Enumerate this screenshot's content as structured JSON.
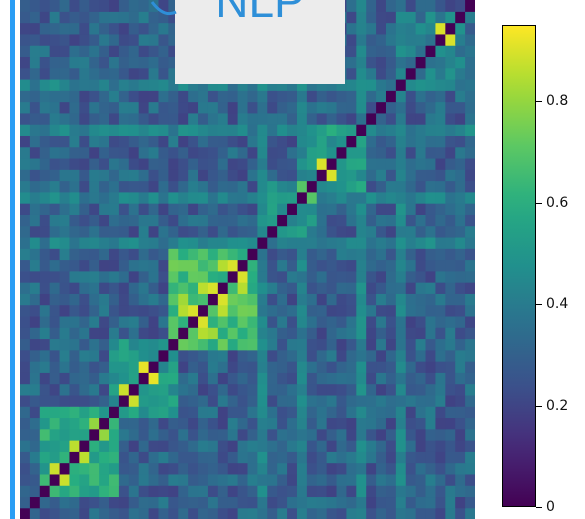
{
  "callout": {
    "label": "NLP",
    "color": "#2e8fd8"
  },
  "chart_data": {
    "type": "heatmap",
    "title": "",
    "xlabel": "",
    "ylabel": "",
    "n": 46,
    "colormap": "viridis",
    "colorbar": {
      "range": [
        0,
        0.95
      ],
      "tick_labels": [
        "0",
        "0.2",
        "0.4",
        "0.6",
        "0.8"
      ],
      "tick_values": [
        0,
        0.2,
        0.4,
        0.6,
        0.8
      ]
    },
    "diagonal_value": 0,
    "background_value": 0.3,
    "blocks": [
      {
        "rows": [
          2,
          9
        ],
        "value": 0.58
      },
      {
        "rows": [
          9,
          15
        ],
        "value": 0.5
      },
      {
        "rows": [
          15,
          23
        ],
        "value": 0.66
      },
      {
        "rows": [
          25,
          29
        ],
        "value": 0.48
      },
      {
        "rows": [
          29,
          34
        ],
        "value": 0.52
      },
      {
        "rows": [
          38,
          44
        ],
        "value": 0.4
      }
    ],
    "highlight_cells": [
      {
        "row": 1,
        "col": 1,
        "value": 0.95
      },
      {
        "row": 3,
        "col": 4,
        "value": 0.88
      },
      {
        "row": 5,
        "col": 6,
        "value": 0.86
      },
      {
        "row": 7,
        "col": 8,
        "value": 0.84
      },
      {
        "row": 8,
        "col": 7,
        "value": 0.8
      },
      {
        "row": 10,
        "col": 11,
        "value": 0.9
      },
      {
        "row": 11,
        "col": 10,
        "value": 0.88
      },
      {
        "row": 12,
        "col": 13,
        "value": 0.92
      },
      {
        "row": 17,
        "col": 18,
        "value": 0.9
      },
      {
        "row": 18,
        "col": 16,
        "value": 0.85
      },
      {
        "row": 19,
        "col": 20,
        "value": 0.9
      },
      {
        "row": 20,
        "col": 18,
        "value": 0.86
      },
      {
        "row": 21,
        "col": 22,
        "value": 0.9
      },
      {
        "row": 22,
        "col": 20,
        "value": 0.85
      },
      {
        "row": 16,
        "col": 19,
        "value": 0.82
      },
      {
        "row": 30,
        "col": 31,
        "value": 0.95
      },
      {
        "row": 31,
        "col": 30,
        "value": 0.9
      },
      {
        "row": 28,
        "col": 29,
        "value": 0.7
      },
      {
        "row": 42,
        "col": 43,
        "value": 0.95
      },
      {
        "row": 43,
        "col": 42,
        "value": 0.9
      }
    ]
  }
}
